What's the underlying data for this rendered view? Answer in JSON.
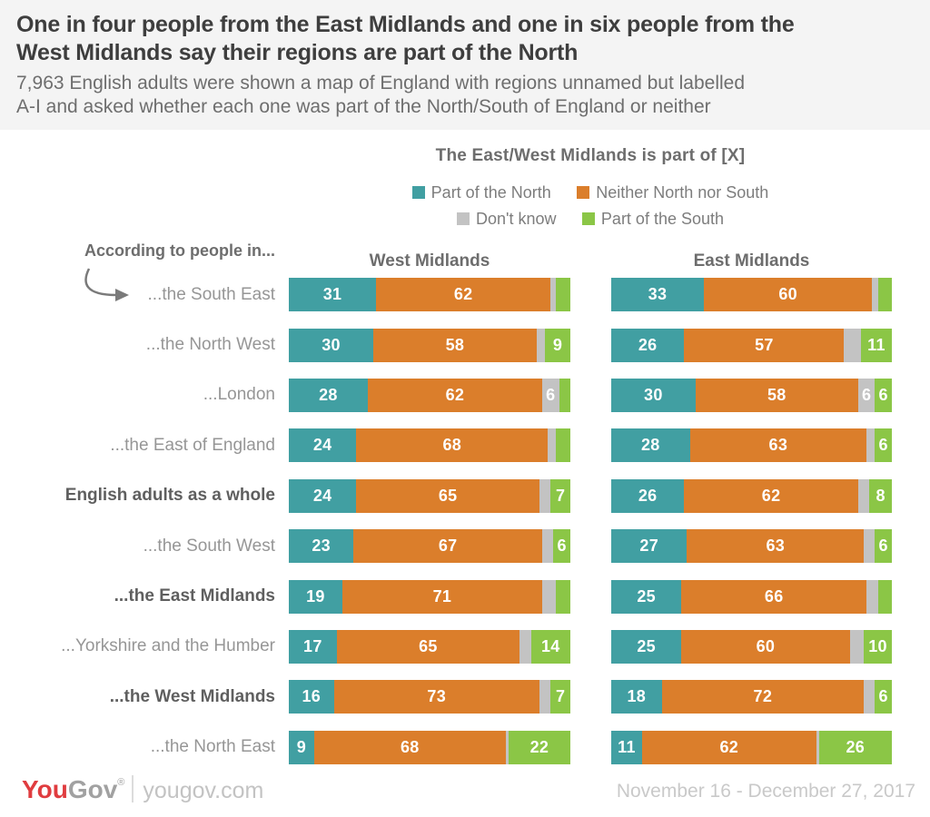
{
  "header": {
    "title_lines": [
      "One in four people from the East Midlands and one in six people from the",
      "West Midlands say their regions are part of the North"
    ],
    "subtitle_lines": [
      "7,963 English adults were shown a map of England with regions unnamed but labelled",
      "A-I and asked whether each one was part of the North/South of England or neither"
    ]
  },
  "chart_data": {
    "type": "bar",
    "variant": "horizontal-stacked-percent",
    "title": "The East/West Midlands is part of [X]",
    "note": "According to people in...",
    "groups": [
      "West Midlands",
      "East Midlands"
    ],
    "xlim": [
      0,
      100
    ],
    "legend_items": [
      {
        "key": "north",
        "label": "Part of the North",
        "color": "#419FA2"
      },
      {
        "key": "neither",
        "label": "Neither North nor South",
        "color": "#DB7E2B"
      },
      {
        "key": "dontknow",
        "label": "Don't know",
        "color": "#C3C3C3"
      },
      {
        "key": "south",
        "label": "Part of the South",
        "color": "#8BC646"
      }
    ],
    "segment_order": [
      "north",
      "neither",
      "dontknow",
      "south"
    ],
    "categories": [
      "...the South East",
      "...the North West",
      "...London",
      "...the East of England",
      "English adults as a whole",
      "...the South West",
      "...the East Midlands",
      "...Yorkshire and the Humber",
      "...the West Midlands",
      "...the North East"
    ],
    "rows": [
      {
        "label": "...the South East",
        "bold": false,
        "west": {
          "values": [
            31,
            62,
            2,
            5
          ],
          "labels": [
            "31",
            "62",
            "",
            ""
          ]
        },
        "east": {
          "values": [
            33,
            60,
            2,
            5
          ],
          "labels": [
            "33",
            "60",
            "",
            ""
          ]
        }
      },
      {
        "label": "...the North West",
        "bold": false,
        "west": {
          "values": [
            30,
            58,
            3,
            9
          ],
          "labels": [
            "30",
            "58",
            "",
            "9"
          ]
        },
        "east": {
          "values": [
            26,
            57,
            6,
            11
          ],
          "labels": [
            "26",
            "57",
            "",
            "11"
          ]
        }
      },
      {
        "label": "...London",
        "bold": false,
        "west": {
          "values": [
            28,
            62,
            6,
            4
          ],
          "labels": [
            "28",
            "62",
            "6",
            ""
          ]
        },
        "east": {
          "values": [
            30,
            58,
            6,
            6
          ],
          "labels": [
            "30",
            "58",
            "6",
            "6"
          ]
        }
      },
      {
        "label": "...the East of England",
        "bold": false,
        "west": {
          "values": [
            24,
            68,
            3,
            5
          ],
          "labels": [
            "24",
            "68",
            "",
            ""
          ]
        },
        "east": {
          "values": [
            28,
            63,
            3,
            6
          ],
          "labels": [
            "28",
            "63",
            "",
            "6"
          ]
        }
      },
      {
        "label": "English adults as a whole",
        "bold": true,
        "west": {
          "values": [
            24,
            65,
            4,
            7
          ],
          "labels": [
            "24",
            "65",
            "",
            "7"
          ]
        },
        "east": {
          "values": [
            26,
            62,
            4,
            8
          ],
          "labels": [
            "26",
            "62",
            "",
            "8"
          ]
        }
      },
      {
        "label": "...the South West",
        "bold": false,
        "west": {
          "values": [
            23,
            67,
            4,
            6
          ],
          "labels": [
            "23",
            "67",
            "",
            "6"
          ]
        },
        "east": {
          "values": [
            27,
            63,
            4,
            6
          ],
          "labels": [
            "27",
            "63",
            "",
            "6"
          ]
        }
      },
      {
        "label": "...the East Midlands",
        "bold": true,
        "west": {
          "values": [
            19,
            71,
            5,
            5
          ],
          "labels": [
            "19",
            "71",
            "",
            ""
          ]
        },
        "east": {
          "values": [
            25,
            66,
            4,
            5
          ],
          "labels": [
            "25",
            "66",
            "",
            ""
          ]
        }
      },
      {
        "label": "...Yorkshire and the Humber",
        "bold": false,
        "west": {
          "values": [
            17,
            65,
            4,
            14
          ],
          "labels": [
            "17",
            "65",
            "",
            "14"
          ]
        },
        "east": {
          "values": [
            25,
            60,
            5,
            10
          ],
          "labels": [
            "25",
            "60",
            "",
            "10"
          ]
        }
      },
      {
        "label": "...the West Midlands",
        "bold": true,
        "west": {
          "values": [
            16,
            73,
            4,
            7
          ],
          "labels": [
            "16",
            "73",
            "",
            "7"
          ]
        },
        "east": {
          "values": [
            18,
            72,
            4,
            6
          ],
          "labels": [
            "18",
            "72",
            "",
            "6"
          ]
        }
      },
      {
        "label": "...the North East",
        "bold": false,
        "west": {
          "values": [
            9,
            68,
            1,
            22
          ],
          "labels": [
            "9",
            "68",
            "",
            "22"
          ]
        },
        "east": {
          "values": [
            11,
            62,
            1,
            26
          ],
          "labels": [
            "11",
            "62",
            "",
            "26"
          ]
        }
      }
    ]
  },
  "footer": {
    "logo_you": "You",
    "logo_gov": "Gov",
    "reg": "®",
    "site": "yougov.com",
    "date": "November 16 - December 27, 2017"
  }
}
